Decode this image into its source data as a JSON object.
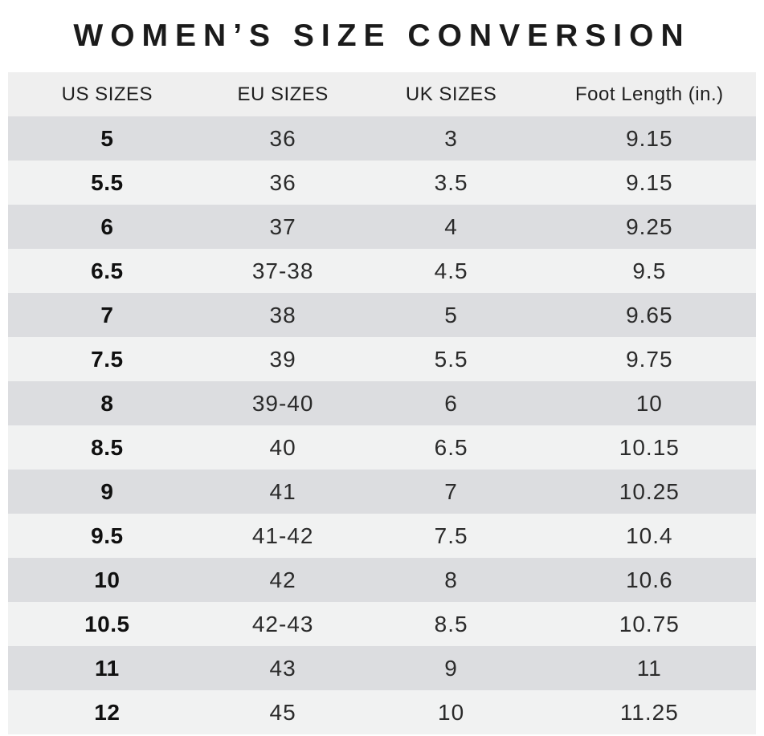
{
  "title": "WOMEN’S SIZE CONVERSION",
  "chart_data": {
    "type": "table",
    "title": "WOMEN’S SIZE CONVERSION",
    "columns": [
      "US SIZES",
      "EU SIZES",
      "UK SIZES",
      "Foot Length (in.)"
    ],
    "rows": [
      [
        "5",
        "36",
        "3",
        "9.15"
      ],
      [
        "5.5",
        "36",
        "3.5",
        "9.15"
      ],
      [
        "6",
        "37",
        "4",
        "9.25"
      ],
      [
        "6.5",
        "37-38",
        "4.5",
        "9.5"
      ],
      [
        "7",
        "38",
        "5",
        "9.65"
      ],
      [
        "7.5",
        "39",
        "5.5",
        "9.75"
      ],
      [
        "8",
        "39-40",
        "6",
        "10"
      ],
      [
        "8.5",
        "40",
        "6.5",
        "10.15"
      ],
      [
        "9",
        "41",
        "7",
        "10.25"
      ],
      [
        "9.5",
        "41-42",
        "7.5",
        "10.4"
      ],
      [
        "10",
        "42",
        "8",
        "10.6"
      ],
      [
        "10.5",
        "42-43",
        "8.5",
        "10.75"
      ],
      [
        "11",
        "43",
        "9",
        "11"
      ],
      [
        "12",
        "45",
        "10",
        "11.25"
      ]
    ],
    "layout": {
      "header_background": "#efefef",
      "row_alt_background_dark": "#dcdde0",
      "row_alt_background_light": "#f1f2f2",
      "first_column_bold": true
    }
  },
  "colors": {
    "title_text": "#1b1b1b",
    "header_bg": "#efefef",
    "row_gray": "#dcdde0",
    "row_light": "#f1f2f2",
    "cell_text": "#2b2b2b",
    "page_bg": "#ffffff"
  }
}
